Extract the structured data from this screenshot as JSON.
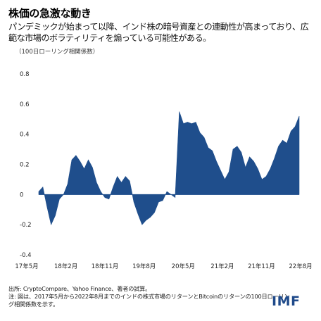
{
  "header": {
    "title": "株価の急激な動き",
    "subtitle": "パンデミックが始まって以降、インド株の暗号資産との連動性が高まっており、広範な市場のボラティリティを煽っている可能性がある。",
    "unit": "（100日ローリング相関係数）"
  },
  "footer": {
    "source": "出所: CryptoCompare、Yahoo Finance、著者の試算。",
    "note": "注: 図は、2017年5月から2022年8月までのインドの株式市場のリターンとBitcoinのリターンの100日ローリング相関係数を示す。",
    "logo": "IMF"
  },
  "colors": {
    "area": "#1f4e8c",
    "zero_line": "#1f4e8c",
    "text": "#111111"
  },
  "chart_data": {
    "type": "area",
    "ylim": [
      -0.4,
      0.8
    ],
    "yticks": [
      -0.4,
      -0.2,
      0,
      0.2,
      0.4,
      0.6,
      0.8
    ],
    "ytick_labels": [
      "-0.4",
      "-0.2",
      "0",
      "0.2",
      "0.4",
      "0.6",
      "0.8"
    ],
    "xtick_labels": [
      "17年5月",
      "18年2月",
      "18年11月",
      "19年8月",
      "20年5月",
      "21年2月",
      "21年11月",
      "22年8月"
    ],
    "xlim": [
      "2017-05",
      "2022-08"
    ],
    "grid": false,
    "series": [
      {
        "x": [
          "2017-05",
          "2017-06",
          "2017-07",
          "2017-08",
          "2017-09",
          "2017-10",
          "2017-11",
          "2017-12",
          "2018-01",
          "2018-02",
          "2018-03",
          "2018-04",
          "2018-05",
          "2018-06",
          "2018-07",
          "2018-08",
          "2018-09",
          "2018-10",
          "2018-11",
          "2018-12",
          "2019-01",
          "2019-02",
          "2019-03",
          "2019-04",
          "2019-05",
          "2019-06",
          "2019-07",
          "2019-08",
          "2019-09",
          "2019-10",
          "2019-11",
          "2019-12",
          "2020-01",
          "2020-02",
          "2020-03",
          "2020-04",
          "2020-05",
          "2020-06",
          "2020-07",
          "2020-08",
          "2020-09",
          "2020-10",
          "2020-11",
          "2020-12",
          "2021-01",
          "2021-02",
          "2021-03",
          "2021-04",
          "2021-05",
          "2021-06",
          "2021-07",
          "2021-08",
          "2021-09",
          "2021-10",
          "2021-11",
          "2021-12",
          "2022-01",
          "2022-02",
          "2022-03",
          "2022-04",
          "2022-05",
          "2022-06",
          "2022-07",
          "2022-08"
        ],
        "values": [
          0.02,
          0.05,
          -0.08,
          -0.2,
          -0.14,
          -0.03,
          0.0,
          0.07,
          0.23,
          0.26,
          0.22,
          0.17,
          0.23,
          0.18,
          0.08,
          0.02,
          -0.02,
          -0.03,
          0.05,
          0.12,
          0.08,
          0.12,
          0.09,
          -0.05,
          -0.13,
          -0.2,
          -0.17,
          -0.15,
          -0.12,
          -0.05,
          -0.04,
          0.02,
          0.0,
          -0.02,
          0.55,
          0.47,
          0.48,
          0.47,
          0.48,
          0.41,
          0.38,
          0.31,
          0.29,
          0.22,
          0.16,
          0.1,
          0.15,
          0.3,
          0.32,
          0.28,
          0.18,
          0.25,
          0.22,
          0.17,
          0.1,
          0.12,
          0.17,
          0.24,
          0.32,
          0.36,
          0.34,
          0.42,
          0.45,
          0.52
        ]
      }
    ]
  }
}
